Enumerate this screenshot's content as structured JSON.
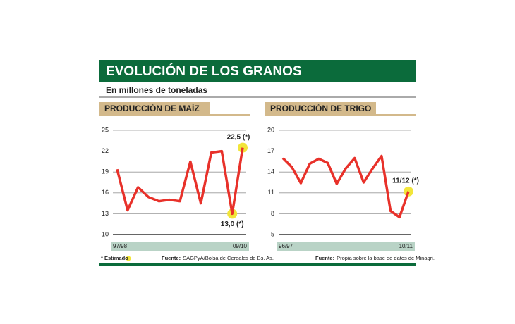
{
  "title": "EVOLUCIÓN DE LOS GRANOS",
  "subtitle": "En millones de toneladas",
  "legend_note": "* Estimado",
  "highlight_color": "#f2e53a",
  "chart_data": [
    {
      "type": "line",
      "title": "PRODUCCIÓN DE MAÍZ",
      "categories": [
        "97/98",
        null,
        null,
        null,
        null,
        null,
        null,
        null,
        null,
        null,
        null,
        null,
        "09/10"
      ],
      "values": [
        19.4,
        13.5,
        16.8,
        15.4,
        14.8,
        15.0,
        14.8,
        20.5,
        14.5,
        21.8,
        22.0,
        13.0,
        22.5
      ],
      "value_labels": [
        null,
        null,
        null,
        null,
        null,
        null,
        null,
        null,
        null,
        null,
        null,
        "13,0 (*)",
        "22,5 (*)"
      ],
      "color": "#e8312a",
      "ylim": [
        10,
        25
      ],
      "yticks": [
        10,
        13,
        16,
        19,
        22,
        25
      ],
      "grid": true,
      "source_label": "Fuente:",
      "source": "SAGPyA/Bolsa de Cereales de Bs. As."
    },
    {
      "type": "line",
      "title": "PRODUCCIÓN DE TRIGO",
      "categories": [
        "96/97",
        null,
        null,
        null,
        null,
        null,
        null,
        null,
        null,
        null,
        null,
        null,
        null,
        null,
        "10/11"
      ],
      "values": [
        16.0,
        14.7,
        12.4,
        15.2,
        15.9,
        15.3,
        12.3,
        14.5,
        16.0,
        12.5,
        14.5,
        16.3,
        8.4,
        7.5,
        11.2
      ],
      "annotation": "11/12 (*)",
      "color": "#e8312a",
      "ylim": [
        5,
        20
      ],
      "yticks": [
        5,
        8,
        11,
        14,
        17,
        20
      ],
      "grid": true,
      "source_label": "Fuente:",
      "source": "Propia sobre la base de datos de Minagri."
    }
  ]
}
